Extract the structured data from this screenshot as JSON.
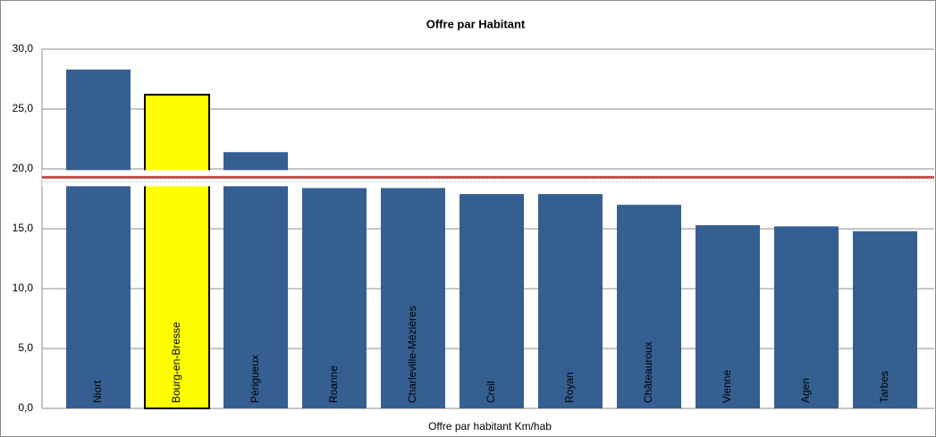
{
  "chart_data": {
    "type": "bar",
    "title": "Offre par Habitant",
    "xlabel": "Offre par habitant Km/hab",
    "categories": [
      "Niort",
      "Bourg-en-Bresse",
      "Périgueux",
      "Roanne",
      "Charleville-Mézières",
      "Creil",
      "Royan",
      "Châteauroux",
      "Vienne",
      "Agen",
      "Tarbes"
    ],
    "values": [
      28.3,
      26.2,
      21.4,
      18.4,
      18.4,
      17.9,
      17.9,
      17.0,
      15.3,
      15.2,
      14.8
    ],
    "colors": [
      "#355f91",
      "#ffff00",
      "#355f91",
      "#355f91",
      "#355f91",
      "#355f91",
      "#355f91",
      "#355f91",
      "#355f91",
      "#355f91",
      "#355f91"
    ],
    "edgecolors": [
      null,
      "#000000",
      null,
      null,
      null,
      null,
      null,
      null,
      null,
      null,
      null
    ],
    "reference_line": {
      "value": 19.3,
      "color": "#c0504d"
    },
    "ylim": [
      0,
      30
    ],
    "yticks": [
      {
        "value": 0,
        "label": "0,0"
      },
      {
        "value": 5,
        "label": "5,0"
      },
      {
        "value": 10,
        "label": "10,0"
      },
      {
        "value": 15,
        "label": "15,0"
      },
      {
        "value": 20,
        "label": "20,0"
      },
      {
        "value": 25,
        "label": "25,0"
      },
      {
        "value": 30,
        "label": "30,0"
      }
    ],
    "grid": true
  }
}
